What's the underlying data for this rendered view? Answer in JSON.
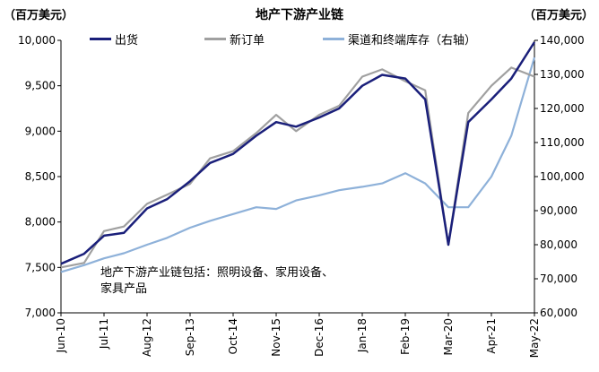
{
  "header": {
    "title": "地产下游产业链",
    "left_unit": "（百万美元）",
    "right_unit": "（百万美元）"
  },
  "annotation": "地产下游产业链包括：照明设备、家用设备、家具产品",
  "chart_data": {
    "type": "line",
    "title": "地产下游产业链",
    "x": [
      "2010-06",
      "2011-01",
      "2011-07",
      "2012-01",
      "2012-08",
      "2013-02",
      "2013-09",
      "2014-03",
      "2014-10",
      "2015-05",
      "2015-11",
      "2016-05",
      "2016-12",
      "2017-06",
      "2018-01",
      "2018-07",
      "2019-02",
      "2019-08",
      "2020-03",
      "2020-09",
      "2021-04",
      "2021-10",
      "2022-05"
    ],
    "x_tick_labels": [
      "Jun-10",
      "Jul-11",
      "Aug-12",
      "Sep-13",
      "Oct-14",
      "Nov-15",
      "Dec-16",
      "Jan-18",
      "Feb-19",
      "Mar-20",
      "Apr-21",
      "May-22"
    ],
    "x_tick_dates": [
      "2010-06",
      "2011-07",
      "2012-08",
      "2013-09",
      "2014-10",
      "2015-11",
      "2016-12",
      "2018-01",
      "2019-02",
      "2020-03",
      "2021-04",
      "2022-05"
    ],
    "y_left": {
      "unit": "百万美元",
      "range": [
        7000,
        10000
      ],
      "ticks": [
        "7,000",
        "7,500",
        "8,000",
        "8,500",
        "9,000",
        "9,500",
        "10,000"
      ]
    },
    "y_right": {
      "unit": "百万美元",
      "range": [
        60000,
        140000
      ],
      "ticks": [
        "60,000",
        "70,000",
        "80,000",
        "90,000",
        "100,000",
        "110,000",
        "120,000",
        "130,000",
        "140,000"
      ]
    },
    "series": [
      {
        "name": "出货",
        "axis": "left",
        "color": "#1a1f7a",
        "values": [
          7540,
          7650,
          7850,
          7880,
          8150,
          8250,
          8450,
          8650,
          8750,
          8950,
          9100,
          9050,
          9150,
          9250,
          9500,
          9620,
          9580,
          9350,
          7750,
          9100,
          9350,
          9580,
          9980
        ]
      },
      {
        "name": "新订单",
        "axis": "left",
        "color": "#a0a0a0",
        "values": [
          7500,
          7550,
          7900,
          7950,
          8200,
          8300,
          8420,
          8700,
          8780,
          8980,
          9180,
          9000,
          9180,
          9280,
          9600,
          9680,
          9550,
          9450,
          7750,
          9200,
          9500,
          9700,
          9600
        ]
      },
      {
        "name": "渠道和终端库存（右轴）",
        "axis": "right",
        "color": "#8eb1d9",
        "values": [
          72000,
          74000,
          76000,
          77500,
          80000,
          82000,
          85000,
          87000,
          89000,
          91000,
          90500,
          93000,
          94500,
          96000,
          97000,
          98000,
          101000,
          98000,
          91000,
          91000,
          100000,
          112000,
          135000
        ]
      }
    ],
    "legend_position": "top",
    "grid": false
  }
}
